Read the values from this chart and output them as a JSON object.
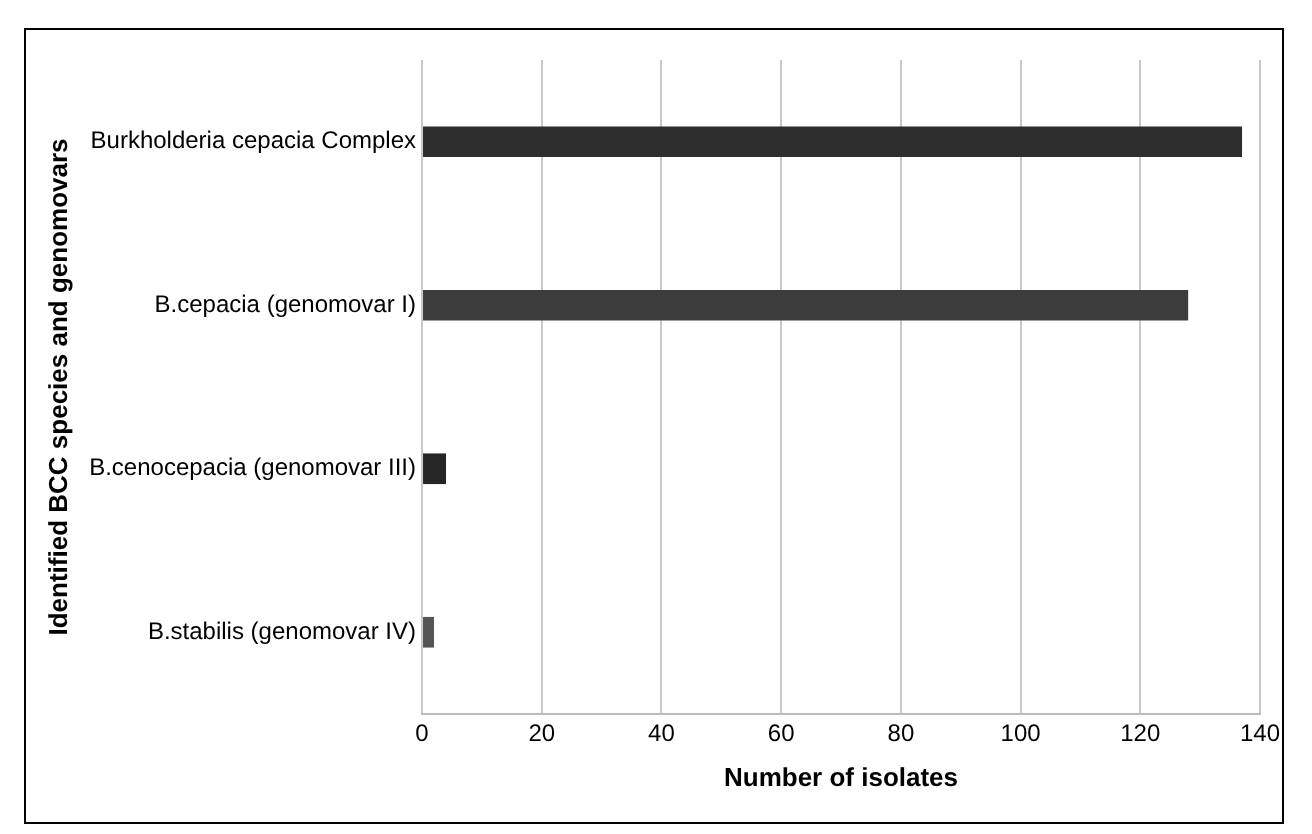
{
  "chart_data": {
    "type": "bar",
    "orientation": "horizontal",
    "xlabel": "Number of isolates",
    "ylabel": "Identified BCC species and genomovars",
    "categories": [
      "Burkholderia cepacia Complex",
      "B.cepacia (genomovar I)",
      "B.cenocepacia (genomovar III)",
      "B.stabilis (genomovar IV)"
    ],
    "values": [
      137,
      128,
      4,
      2
    ],
    "colors": [
      "#2e2e2e",
      "#3c3c3c",
      "#262626",
      "#555555"
    ],
    "xlim": [
      0,
      140
    ],
    "xticks": [
      0,
      20,
      40,
      60,
      80,
      100,
      120,
      140
    ],
    "grid": "x",
    "legend": false
  }
}
